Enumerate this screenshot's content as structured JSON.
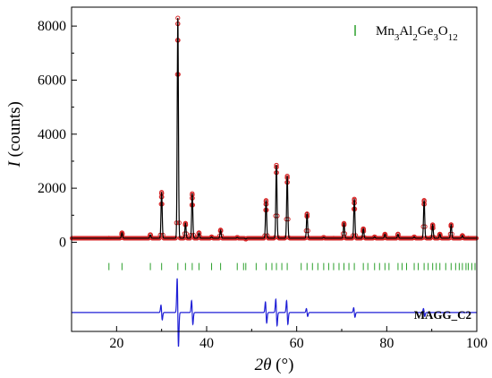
{
  "chart_data": {
    "type": "scatter",
    "title": "",
    "xlabel_symbol": "2θ",
    "xlabel_unit": "(°)",
    "ylabel_symbol": "I",
    "ylabel_unit": "(counts)",
    "xlim": [
      10,
      100
    ],
    "ylim": [
      -3300,
      8700
    ],
    "x_ticks": [
      20,
      40,
      60,
      80,
      100
    ],
    "y_ticks": [
      0,
      2000,
      4000,
      6000,
      8000
    ],
    "grid": false,
    "legend": {
      "placement": "top-right",
      "entry": {
        "formula_parts": [
          "Mn",
          "3",
          "Al",
          "2",
          "Ge",
          "3",
          "O",
          "12"
        ],
        "color": "#2ca02c"
      }
    },
    "sample_label": "MAGG_C2",
    "background_counts": 150,
    "peak_width_deg": 0.13,
    "reflection_marker_level": -900,
    "difference_baseline": -2600,
    "peaks": [
      {
        "x": 18.3,
        "y": 150
      },
      {
        "x": 21.2,
        "y": 350
      },
      {
        "x": 27.5,
        "y": 280
      },
      {
        "x": 30.0,
        "y": 1850
      },
      {
        "x": 33.6,
        "y": 8300
      },
      {
        "x": 35.3,
        "y": 700
      },
      {
        "x": 36.8,
        "y": 1800
      },
      {
        "x": 38.3,
        "y": 350
      },
      {
        "x": 41.1,
        "y": 200
      },
      {
        "x": 43.1,
        "y": 450
      },
      {
        "x": 46.8,
        "y": 180
      },
      {
        "x": 48.7,
        "y": 120
      },
      {
        "x": 53.2,
        "y": 1550
      },
      {
        "x": 55.5,
        "y": 2850
      },
      {
        "x": 57.9,
        "y": 2450
      },
      {
        "x": 62.3,
        "y": 1050
      },
      {
        "x": 66.0,
        "y": 180
      },
      {
        "x": 68.2,
        "y": 150
      },
      {
        "x": 70.5,
        "y": 700
      },
      {
        "x": 72.8,
        "y": 1600
      },
      {
        "x": 74.8,
        "y": 500
      },
      {
        "x": 77.3,
        "y": 200
      },
      {
        "x": 79.6,
        "y": 300
      },
      {
        "x": 82.5,
        "y": 300
      },
      {
        "x": 86.1,
        "y": 200
      },
      {
        "x": 88.3,
        "y": 1550
      },
      {
        "x": 90.2,
        "y": 650
      },
      {
        "x": 91.8,
        "y": 300
      },
      {
        "x": 94.3,
        "y": 650
      },
      {
        "x": 96.8,
        "y": 250
      },
      {
        "x": 98.1,
        "y": 150
      }
    ],
    "reflections": [
      18.3,
      21.2,
      27.5,
      30.0,
      33.6,
      35.3,
      36.8,
      38.3,
      41.1,
      43.1,
      46.8,
      48.2,
      48.7,
      51.0,
      53.2,
      54.5,
      55.5,
      56.7,
      57.9,
      61.0,
      62.3,
      63.5,
      64.7,
      66.0,
      67.1,
      68.2,
      69.4,
      70.5,
      71.6,
      72.8,
      74.8,
      75.8,
      77.3,
      78.4,
      79.6,
      80.5,
      82.5,
      83.4,
      84.4,
      86.1,
      87.0,
      88.3,
      89.2,
      90.2,
      91.0,
      91.8,
      93.1,
      94.3,
      95.3,
      96.1,
      96.8,
      97.6,
      98.1,
      98.9,
      99.6
    ],
    "difference_features": [
      {
        "x": 30.0,
        "amp": 280
      },
      {
        "x": 33.6,
        "amp": 1300
      },
      {
        "x": 36.8,
        "amp": 450
      },
      {
        "x": 53.2,
        "amp": 400
      },
      {
        "x": 55.5,
        "amp": 500
      },
      {
        "x": 57.9,
        "amp": 450
      },
      {
        "x": 62.3,
        "amp": 150
      },
      {
        "x": 72.8,
        "amp": 180
      },
      {
        "x": 88.3,
        "amp": 150
      }
    ],
    "series_styles": {
      "observed": {
        "color": "#d62728",
        "marker": "open-circle"
      },
      "calculated": {
        "color": "#000000"
      },
      "difference": {
        "color": "#1f1fd6"
      },
      "reflections": {
        "color": "#2ca02c"
      }
    }
  }
}
